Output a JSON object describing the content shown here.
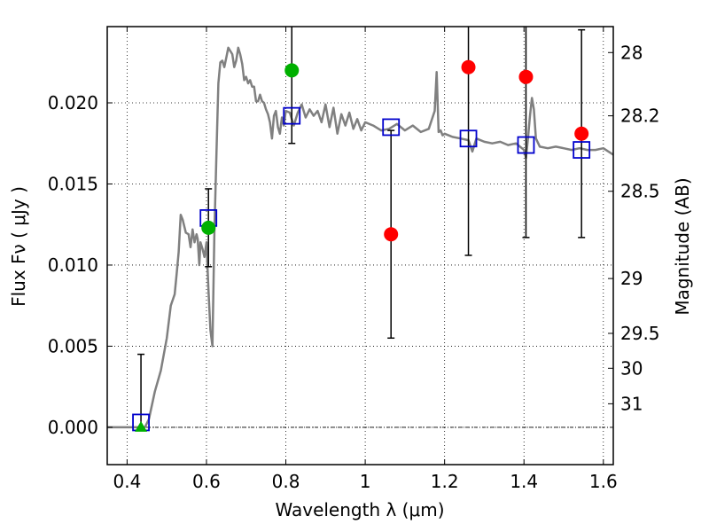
{
  "chart_data": {
    "type": "scatter",
    "xlabel": "Wavelength  λ (μm)",
    "ylabel": "Flux  Fν  ( μJy )",
    "ylabel_right": "Magnitude (AB)",
    "xlim": [
      0.35,
      1.625
    ],
    "ylim": [
      -0.0023,
      0.0247
    ],
    "grid": true,
    "x_ticks": [
      0.4,
      0.6,
      0.8,
      1.0,
      1.2,
      1.4,
      1.6
    ],
    "x_tick_labels": [
      "0.4",
      "0.6",
      "0.8",
      "1",
      "1.2",
      "1.4",
      "1.6"
    ],
    "y_ticks": [
      0.0,
      0.005,
      0.01,
      0.015,
      0.02
    ],
    "y_tick_labels": [
      "0.000",
      "0.005",
      "0.010",
      "0.015",
      "0.020"
    ],
    "mag_ticks": [
      {
        "label": "28",
        "value": 0.0231
      },
      {
        "label": "28.2",
        "value": 0.0192
      },
      {
        "label": "28.5",
        "value": 0.01455
      },
      {
        "label": "29",
        "value": 0.00917
      },
      {
        "label": "29.5",
        "value": 0.00579
      },
      {
        "label": "30",
        "value": 0.00364
      },
      {
        "label": "31",
        "value": 0.00145
      }
    ],
    "sed_model": {
      "color": "#808080",
      "x": [
        0.35,
        0.445,
        0.455,
        0.47,
        0.485,
        0.5,
        0.51,
        0.52,
        0.525,
        0.53,
        0.535,
        0.54,
        0.548,
        0.555,
        0.56,
        0.565,
        0.57,
        0.575,
        0.578,
        0.582,
        0.585,
        0.59,
        0.595,
        0.6,
        0.605,
        0.61,
        0.615,
        0.62,
        0.625,
        0.63,
        0.635,
        0.64,
        0.645,
        0.65,
        0.655,
        0.66,
        0.665,
        0.67,
        0.675,
        0.68,
        0.685,
        0.69,
        0.695,
        0.7,
        0.705,
        0.71,
        0.715,
        0.72,
        0.725,
        0.73,
        0.735,
        0.74,
        0.745,
        0.75,
        0.755,
        0.76,
        0.765,
        0.77,
        0.775,
        0.78,
        0.785,
        0.79,
        0.795,
        0.8,
        0.81,
        0.82,
        0.83,
        0.84,
        0.85,
        0.86,
        0.87,
        0.88,
        0.89,
        0.9,
        0.91,
        0.92,
        0.93,
        0.94,
        0.95,
        0.96,
        0.97,
        0.98,
        0.99,
        1.0,
        1.02,
        1.04,
        1.06,
        1.08,
        1.1,
        1.12,
        1.14,
        1.16,
        1.175,
        1.18,
        1.185,
        1.19,
        1.195,
        1.2,
        1.22,
        1.24,
        1.26,
        1.27,
        1.28,
        1.3,
        1.32,
        1.34,
        1.36,
        1.38,
        1.4,
        1.405,
        1.41,
        1.415,
        1.42,
        1.425,
        1.43,
        1.44,
        1.46,
        1.48,
        1.5,
        1.52,
        1.54,
        1.56,
        1.58,
        1.6,
        1.625
      ],
      "y": [
        0.0,
        0.0,
        0.0005,
        0.0022,
        0.0035,
        0.0055,
        0.0075,
        0.0082,
        0.0095,
        0.0108,
        0.0131,
        0.0128,
        0.012,
        0.0119,
        0.0111,
        0.0122,
        0.0114,
        0.0119,
        0.0116,
        0.01,
        0.0114,
        0.011,
        0.0105,
        0.0114,
        0.0085,
        0.006,
        0.005,
        0.012,
        0.0168,
        0.0212,
        0.0225,
        0.0226,
        0.0222,
        0.0228,
        0.0234,
        0.0232,
        0.023,
        0.0222,
        0.0226,
        0.0234,
        0.023,
        0.0224,
        0.0214,
        0.0216,
        0.0212,
        0.0214,
        0.021,
        0.021,
        0.0201,
        0.0201,
        0.0205,
        0.0201,
        0.02,
        0.0196,
        0.0193,
        0.0188,
        0.0178,
        0.0192,
        0.0195,
        0.0185,
        0.0181,
        0.0191,
        0.0186,
        0.0195,
        0.0194,
        0.0186,
        0.0194,
        0.0199,
        0.0191,
        0.0196,
        0.0192,
        0.0195,
        0.0188,
        0.0199,
        0.0185,
        0.0197,
        0.0181,
        0.0193,
        0.0186,
        0.0194,
        0.0184,
        0.019,
        0.0183,
        0.0188,
        0.0186,
        0.0183,
        0.0184,
        0.0187,
        0.0183,
        0.0186,
        0.0182,
        0.0184,
        0.0195,
        0.0219,
        0.0182,
        0.0183,
        0.018,
        0.0181,
        0.0179,
        0.0178,
        0.0177,
        0.017,
        0.0178,
        0.0176,
        0.0175,
        0.0176,
        0.0174,
        0.0175,
        0.0171,
        0.0166,
        0.0178,
        0.0192,
        0.0203,
        0.0196,
        0.0178,
        0.0173,
        0.0172,
        0.0173,
        0.0172,
        0.0171,
        0.0172,
        0.0171,
        0.0171,
        0.0172,
        0.0168
      ]
    },
    "observed": {
      "color": "#ff0000",
      "x": [
        1.065,
        1.26,
        1.405,
        1.545
      ],
      "y": [
        0.0119,
        0.0222,
        0.0216,
        0.0181
      ],
      "err_low": [
        0.0064,
        0.0116,
        0.0099,
        0.0064
      ],
      "err_high": [
        0.0064,
        0.0116,
        0.0099,
        0.0064
      ]
    },
    "observed_secondary": {
      "color": "#00b000",
      "x": [
        0.435,
        0.605,
        0.815
      ],
      "y": [
        0.0,
        0.0123,
        0.022
      ]
    },
    "model_photometry": {
      "color": "#0000cc",
      "x": [
        0.435,
        0.605,
        0.815,
        1.065,
        1.26,
        1.405,
        1.545
      ],
      "y": [
        0.0003,
        0.0129,
        0.0192,
        0.0185,
        0.0178,
        0.0174,
        0.0171
      ]
    },
    "error_bars": {
      "x": [
        0.435,
        0.605,
        0.815
      ],
      "low": [
        0.0,
        0.0099,
        0.0175
      ],
      "high": [
        0.0045,
        0.0147,
        0.0247
      ]
    }
  }
}
